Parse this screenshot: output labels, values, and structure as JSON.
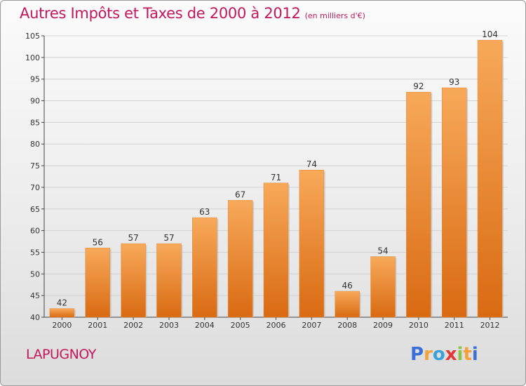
{
  "title": "Autres Impôts et Taxes de 2000 à 2012",
  "subtitle": "(en milliers d'€)",
  "location": "LAPUGNOY",
  "logo": {
    "letters": [
      {
        "char": "P",
        "color": "#3b6fd8"
      },
      {
        "char": "r",
        "color": "#f2a23a"
      },
      {
        "char": "o",
        "color": "#3aa1d8"
      },
      {
        "char": "x",
        "color": "#e53935"
      },
      {
        "char": "i",
        "color": "#8bc34a"
      },
      {
        "char": "t",
        "color": "#f2a23a"
      },
      {
        "char": "i",
        "color": "#3b6fd8"
      }
    ]
  },
  "chart_data": {
    "type": "bar",
    "categories": [
      "2000",
      "2001",
      "2002",
      "2003",
      "2004",
      "2005",
      "2006",
      "2007",
      "2008",
      "2009",
      "2010",
      "2011",
      "2012"
    ],
    "values": [
      42,
      56,
      57,
      57,
      63,
      67,
      71,
      74,
      46,
      54,
      92,
      93,
      104
    ],
    "ylim": [
      40,
      105
    ],
    "yticks": [
      40,
      45,
      50,
      55,
      60,
      65,
      70,
      75,
      80,
      85,
      90,
      95,
      100,
      105
    ],
    "grid": true,
    "bar_color": "#f0903a",
    "data_labels": true
  }
}
